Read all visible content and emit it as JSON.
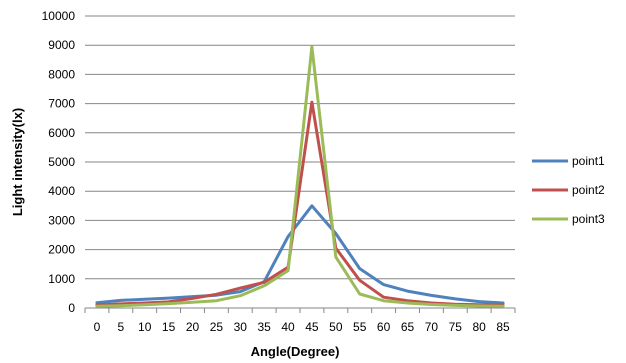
{
  "chart_data": {
    "type": "line",
    "title": "",
    "xlabel": "Angle(Degree)",
    "ylabel": "Light intensity(lx)",
    "ylim": [
      0,
      10000
    ],
    "yticks": [
      "0",
      "1000",
      "2000",
      "3000",
      "4000",
      "5000",
      "6000",
      "7000",
      "8000",
      "9000",
      "10000"
    ],
    "grid": "horizontal",
    "legend_position": "right",
    "categories": [
      "0",
      "5",
      "10",
      "15",
      "20",
      "25",
      "30",
      "35",
      "40",
      "45",
      "50",
      "55",
      "60",
      "65",
      "70",
      "75",
      "80",
      "85"
    ],
    "series": [
      {
        "name": "point1",
        "color": "#4F81BD",
        "values": [
          180,
          260,
          300,
          340,
          390,
          440,
          560,
          900,
          2450,
          3500,
          2550,
          1350,
          800,
          580,
          430,
          310,
          220,
          170
        ]
      },
      {
        "name": "point2",
        "color": "#C0504D",
        "values": [
          100,
          140,
          170,
          210,
          330,
          470,
          680,
          880,
          1400,
          7050,
          2050,
          950,
          370,
          250,
          170,
          130,
          110,
          90
        ]
      },
      {
        "name": "point3",
        "color": "#9BBB59",
        "values": [
          60,
          80,
          110,
          150,
          200,
          250,
          420,
          760,
          1280,
          8950,
          1750,
          480,
          250,
          170,
          120,
          90,
          70,
          60
        ]
      }
    ]
  }
}
